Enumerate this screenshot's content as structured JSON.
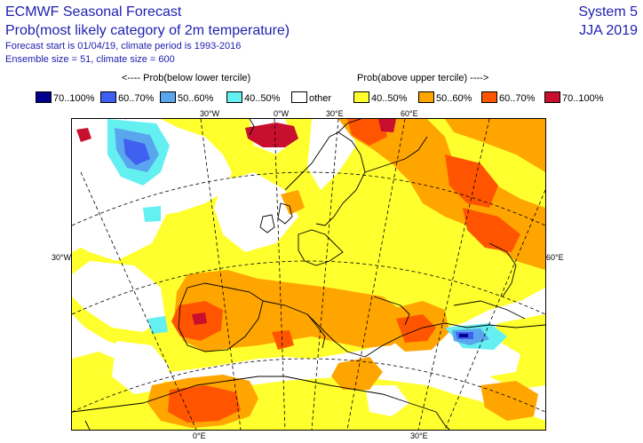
{
  "header": {
    "title": "ECMWF Seasonal Forecast",
    "subtitle": "Prob(most likely category of 2m temperature)",
    "forecast_info": "Forecast start is 01/04/19, climate period is 1993-2016",
    "ensemble_info": "Ensemble size = 51, climate size = 600",
    "system": "System 5",
    "season": "JJA 2019"
  },
  "legend": {
    "below_header": "<---- Prob(below lower tercile)",
    "above_header": "Prob(above upper tercile) ---->",
    "items": [
      {
        "label": "70..100%",
        "color": "#00008b"
      },
      {
        "label": "60..70%",
        "color": "#3f5ff0"
      },
      {
        "label": "50..60%",
        "color": "#5aa6ee"
      },
      {
        "label": "40..50%",
        "color": "#64f0f0"
      },
      {
        "label": "other",
        "color": "#ffffff"
      },
      {
        "label": "40..50%",
        "color": "#ffff2e"
      },
      {
        "label": "50..60%",
        "color": "#ffa500"
      },
      {
        "label": "60..70%",
        "color": "#ff5500"
      },
      {
        "label": "70..100%",
        "color": "#c8102e"
      }
    ]
  },
  "axes": {
    "top": [
      "30°W",
      "0°W",
      "30°E",
      "60°E"
    ],
    "left": "30°W",
    "right": "60°E",
    "bottom": [
      "0°E",
      "30°E"
    ]
  }
}
